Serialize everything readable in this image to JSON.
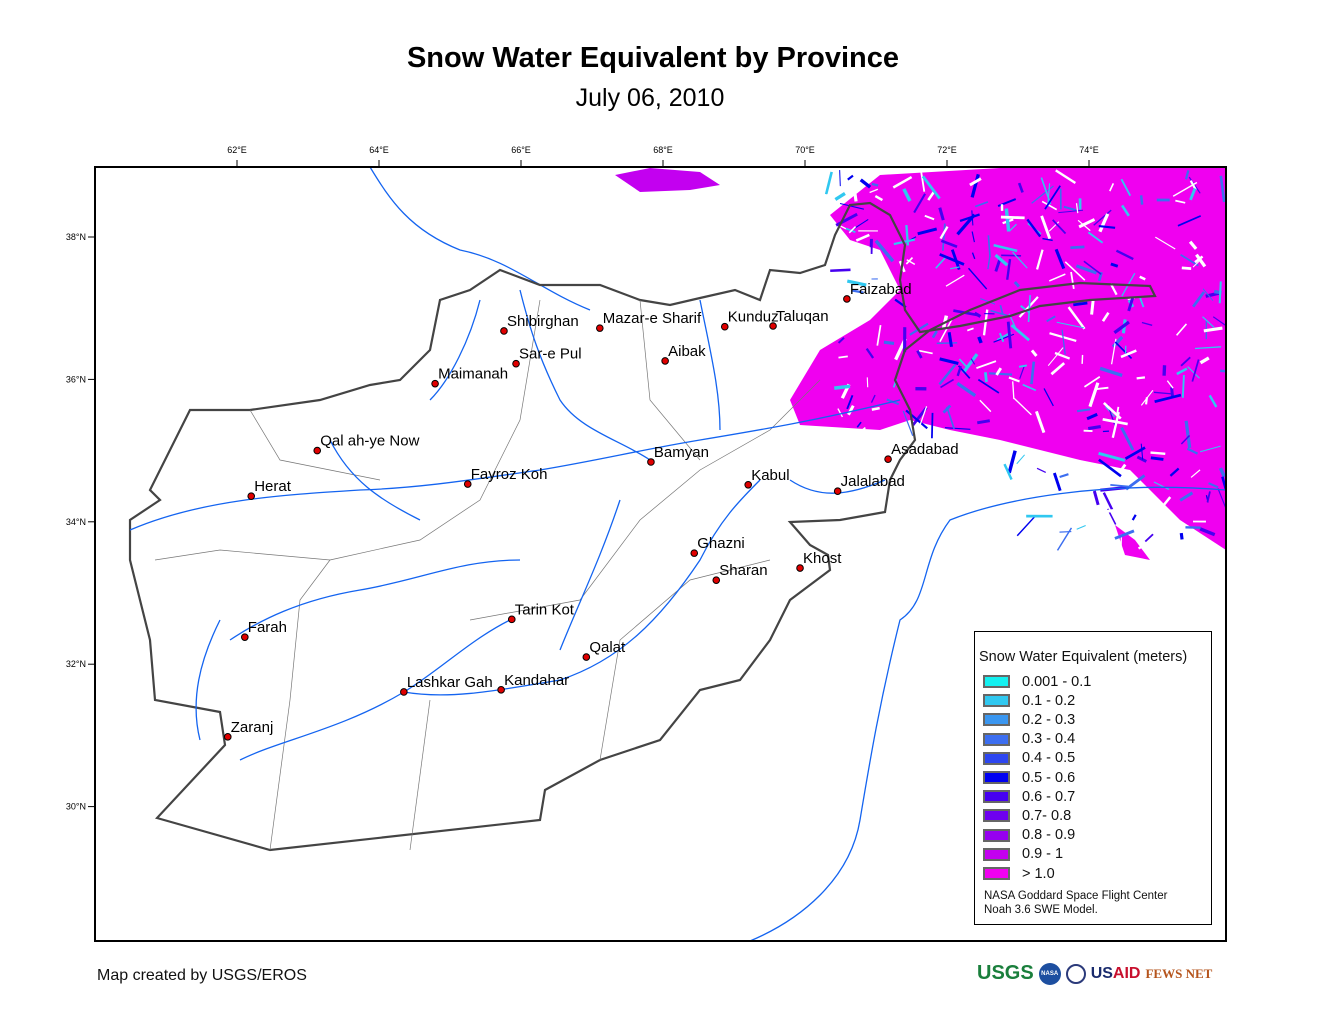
{
  "header": {
    "title": "Snow Water Equivalent by Province",
    "date": "July 06, 2010"
  },
  "axes": {
    "longitudes": [
      {
        "value": 62,
        "label": "62°E"
      },
      {
        "value": 64,
        "label": "64°E"
      },
      {
        "value": 66,
        "label": "66°E"
      },
      {
        "value": 68,
        "label": "68°E"
      },
      {
        "value": 70,
        "label": "70°E"
      },
      {
        "value": 72,
        "label": "72°E"
      },
      {
        "value": 74,
        "label": "74°E"
      }
    ],
    "latitudes": [
      {
        "value": 38,
        "label": "38°N"
      },
      {
        "value": 36,
        "label": "36°N"
      },
      {
        "value": 34,
        "label": "34°N"
      },
      {
        "value": 32,
        "label": "32°N"
      },
      {
        "value": 30,
        "label": "30°N"
      }
    ]
  },
  "cities": [
    {
      "name": "Shibirghan",
      "lon": 65.76,
      "lat": 36.68
    },
    {
      "name": "Mazar-e Sharif",
      "lon": 67.11,
      "lat": 36.72
    },
    {
      "name": "Kunduz",
      "lon": 68.87,
      "lat": 36.74
    },
    {
      "name": "Taluqan",
      "lon": 69.55,
      "lat": 36.75
    },
    {
      "name": "Faizabad",
      "lon": 70.59,
      "lat": 37.13
    },
    {
      "name": "Sar-e Pul",
      "lon": 65.93,
      "lat": 36.22
    },
    {
      "name": "Aibak",
      "lon": 68.03,
      "lat": 36.26
    },
    {
      "name": "Maimanah",
      "lon": 64.79,
      "lat": 35.94
    },
    {
      "name": "Qal ah-ye Now",
      "lon": 63.13,
      "lat": 35.0
    },
    {
      "name": "Herat",
      "lon": 62.2,
      "lat": 34.36
    },
    {
      "name": "Fayroz Koh",
      "lon": 65.25,
      "lat": 34.53
    },
    {
      "name": "Bamyan",
      "lon": 67.83,
      "lat": 34.84
    },
    {
      "name": "Kabul",
      "lon": 69.2,
      "lat": 34.52
    },
    {
      "name": "Asadabad",
      "lon": 71.17,
      "lat": 34.88
    },
    {
      "name": "Jalalabad",
      "lon": 70.46,
      "lat": 34.43
    },
    {
      "name": "Ghazni",
      "lon": 68.44,
      "lat": 33.56
    },
    {
      "name": "Sharan",
      "lon": 68.75,
      "lat": 33.18
    },
    {
      "name": "Khost",
      "lon": 69.93,
      "lat": 33.35
    },
    {
      "name": "Tarin Kot",
      "lon": 65.87,
      "lat": 32.63
    },
    {
      "name": "Farah",
      "lon": 62.11,
      "lat": 32.38
    },
    {
      "name": "Qalat",
      "lon": 66.92,
      "lat": 32.1
    },
    {
      "name": "Lashkar Gah",
      "lon": 64.35,
      "lat": 31.61
    },
    {
      "name": "Kandahar",
      "lon": 65.72,
      "lat": 31.64
    },
    {
      "name": "Zaranj",
      "lon": 61.87,
      "lat": 30.98
    }
  ],
  "legend": {
    "title": "Snow Water Equivalent (meters)",
    "classes": [
      {
        "label": "0.001 - 0.1",
        "color": "#14F0F0"
      },
      {
        "label": "0.1 - 0.2",
        "color": "#30C8F0"
      },
      {
        "label": "0.2 - 0.3",
        "color": "#3A96F0"
      },
      {
        "label": "0.3 - 0.4",
        "color": "#3C6EF0"
      },
      {
        "label": "0.4 - 0.5",
        "color": "#2D46F0"
      },
      {
        "label": "0.5 - 0.6",
        "color": "#0000F0"
      },
      {
        "label": "0.6 - 0.7",
        "color": "#4600F0"
      },
      {
        "label": "0.7- 0.8",
        "color": "#6E00F0"
      },
      {
        "label": "0.8 - 0.9",
        "color": "#9600F0"
      },
      {
        "label": "0.9 - 1",
        "color": "#C300F0"
      },
      {
        "label": "> 1.0",
        "color": "#F000F0"
      }
    ],
    "credit_line1": "NASA Goddard Space Flight Center",
    "credit_line2": "Noah 3.6 SWE Model."
  },
  "footer": {
    "credit": "Map created by USGS/EROS"
  },
  "logos": {
    "usgs": "USGS",
    "nasa": "NASA",
    "usaid_us": "US",
    "usaid_aid": "AID",
    "fews": "FEWS NET"
  },
  "colors": {
    "river": "#1464F0",
    "border": "#444444",
    "city": "#E00000"
  }
}
